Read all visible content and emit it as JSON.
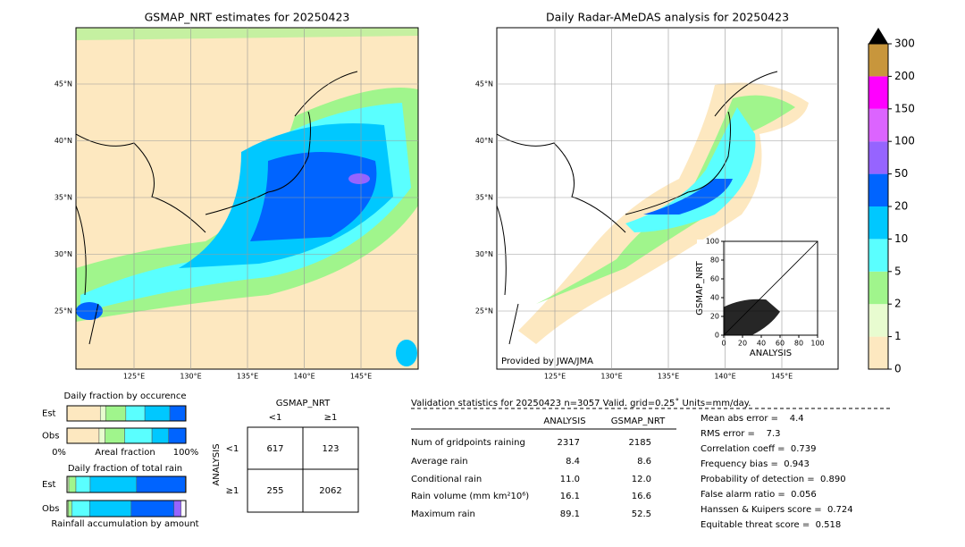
{
  "left_map": {
    "title": "GSMAP_NRT estimates for 20250423",
    "lat_ticks": [
      {
        "value": 45,
        "label": "45°N"
      },
      {
        "value": 40,
        "label": "40°N"
      },
      {
        "value": 35,
        "label": "35°N"
      },
      {
        "value": 30,
        "label": "30°N"
      },
      {
        "value": 25,
        "label": "25°N"
      }
    ],
    "lon_ticks": [
      {
        "value": 125,
        "label": "125°E"
      },
      {
        "value": 130,
        "label": "130°E"
      },
      {
        "value": 135,
        "label": "135°E"
      },
      {
        "value": 140,
        "label": "140°E"
      },
      {
        "value": 145,
        "label": "145°E"
      }
    ]
  },
  "right_map": {
    "title": "Daily Radar-AMeDAS analysis for 20250423",
    "credit": "Provided by JWA/JMA",
    "lat_ticks": [
      {
        "value": 45,
        "label": "45°N"
      },
      {
        "value": 40,
        "label": "40°N"
      },
      {
        "value": 35,
        "label": "35°N"
      },
      {
        "value": 30,
        "label": "30°N"
      },
      {
        "value": 25,
        "label": "25°N"
      }
    ],
    "lon_ticks": [
      {
        "value": 125,
        "label": "125°E"
      },
      {
        "value": 130,
        "label": "130°E"
      },
      {
        "value": 135,
        "label": "135°E"
      },
      {
        "value": 140,
        "label": "140°E"
      },
      {
        "value": 145,
        "label": "145°E"
      }
    ]
  },
  "colorbar": {
    "levels": [
      0,
      1,
      2,
      5,
      10,
      20,
      50,
      100,
      150,
      200,
      300
    ],
    "colors": [
      "#fde8c0",
      "#e8fcd0",
      "#a0f58c",
      "#5affff",
      "#00c8ff",
      "#0064ff",
      "#9664ff",
      "#dc64ff",
      "#ff00ff",
      "#c8963c"
    ]
  },
  "scatter": {
    "xlabel": "ANALYSIS",
    "ylabel": "GSMAP_NRT",
    "xlim": [
      0,
      100
    ],
    "ylim": [
      0,
      100
    ],
    "xticks": [
      0,
      20,
      40,
      60,
      80,
      100
    ],
    "yticks": [
      0,
      20,
      40,
      60,
      80,
      100
    ]
  },
  "fractions": {
    "occurrence_title": "Daily fraction by occurence",
    "amount_title": "Daily fraction of total rain",
    "axis_left": "0%",
    "axis_label": "Areal fraction",
    "axis_right": "100%",
    "footer": "Rainfall accumulation by amount",
    "colors": [
      "#fde8c0",
      "#e8fcd0",
      "#a0f58c",
      "#5affff",
      "#00c8ff",
      "#0064ff",
      "#9664ff"
    ],
    "occurrence": [
      {
        "name": "Est",
        "values": [
          28,
          4.5,
          17,
          16,
          21,
          13,
          0.5
        ]
      },
      {
        "name": "Obs",
        "values": [
          27,
          5,
          16.5,
          23,
          14,
          14.5,
          0
        ]
      }
    ],
    "amount": [
      {
        "name": "Est",
        "values": [
          0,
          1.5,
          6,
          12,
          39,
          41,
          0.5
        ]
      },
      {
        "name": "Obs",
        "values": [
          0,
          1,
          3,
          15,
          35,
          36,
          6
        ]
      }
    ]
  },
  "contingency": {
    "title": "GSMAP_NRT",
    "col_labels": [
      "<1",
      "≥1"
    ],
    "row_title": "ANALYSIS",
    "row_labels": [
      "<1",
      "≥1"
    ],
    "cells": [
      [
        "617",
        "123"
      ],
      [
        "255",
        "2062"
      ]
    ]
  },
  "stats": {
    "header": "Validation statistics for 20250423  n=3057 Valid. grid=0.25˚ Units=mm/day.",
    "columns": [
      "ANALYSIS",
      "GSMAP_NRT"
    ],
    "rows": [
      [
        "Num of gridpoints raining",
        "2317",
        "2185"
      ],
      [
        "Average rain",
        "8.4",
        "8.6"
      ],
      [
        "Conditional rain",
        "11.0",
        "12.0"
      ],
      [
        "Rain volume (mm km²10⁶)",
        "16.1",
        "16.6"
      ],
      [
        "Maximum rain",
        "89.1",
        "52.5"
      ]
    ],
    "scores": [
      "Mean abs error =    4.4",
      "RMS error =    7.3",
      "Correlation coeff =  0.739",
      "Frequency bias =  0.943",
      "Probability of detection =  0.890",
      "False alarm ratio =  0.056",
      "Hanssen & Kuipers score =  0.724",
      "Equitable threat score =  0.518"
    ]
  }
}
